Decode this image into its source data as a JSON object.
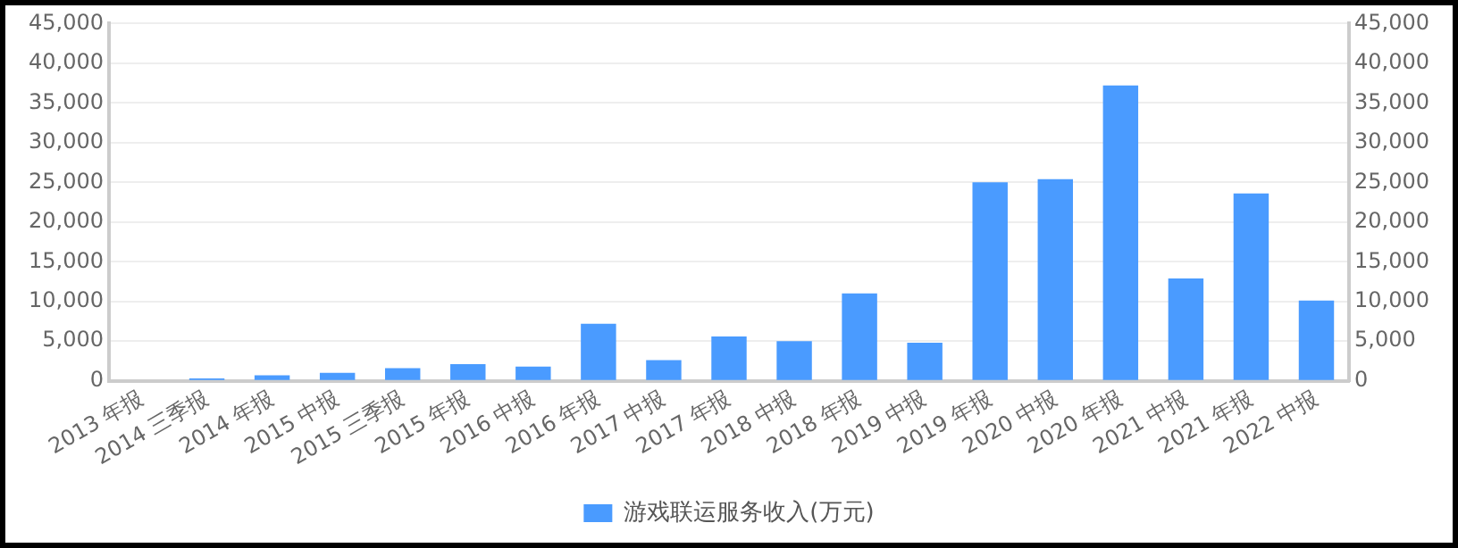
{
  "chart_data": {
    "type": "bar",
    "categories": [
      "2013 年报",
      "2014 三季报",
      "2014 年报",
      "2015 中报",
      "2015 三季报",
      "2015 年报",
      "2016 中报",
      "2016 年报",
      "2017 中报",
      "2017 年报",
      "2018 中报",
      "2018 年报",
      "2019 中报",
      "2019 年报",
      "2020 中报",
      "2020 年报",
      "2021 中报",
      "2021 年报",
      "2022 中报"
    ],
    "series": [
      {
        "name": "游戏联运服务收入(万元)",
        "color": "#4a9bff",
        "values": [
          0,
          300,
          700,
          1000,
          1600,
          2100,
          1800,
          7200,
          2600,
          5600,
          5000,
          11000,
          4800,
          25000,
          25400,
          37200,
          12900,
          23600,
          10100
        ]
      }
    ],
    "ylim": [
      0,
      45000
    ],
    "yticks": [
      0,
      {
        "value": 5000,
        "label": "5,000"
      },
      {
        "value": 10000,
        "label": "10,000"
      },
      {
        "value": 15000,
        "label": "15,000"
      },
      {
        "value": 20000,
        "label": "20,000"
      },
      {
        "value": 25000,
        "label": "25,000"
      },
      {
        "value": 30000,
        "label": "30,000"
      },
      {
        "value": 35000,
        "label": "35,000"
      },
      {
        "value": 40000,
        "label": "40,000"
      },
      {
        "value": 45000,
        "label": "45,000"
      }
    ],
    "y2lim": [
      0,
      45000
    ],
    "y2ticks": [
      0,
      {
        "value": 5000,
        "label": "5,000"
      },
      {
        "value": 10000,
        "label": "10,000"
      },
      {
        "value": 15000,
        "label": "15,000"
      },
      {
        "value": 20000,
        "label": "20,000"
      },
      {
        "value": 25000,
        "label": "25,000"
      },
      {
        "value": 30000,
        "label": "30,000"
      },
      {
        "value": 35000,
        "label": "35,000"
      },
      {
        "value": 40000,
        "label": "40,000"
      },
      {
        "value": 45000,
        "label": "45,000"
      }
    ],
    "grid": "y",
    "legend": "bottom"
  }
}
